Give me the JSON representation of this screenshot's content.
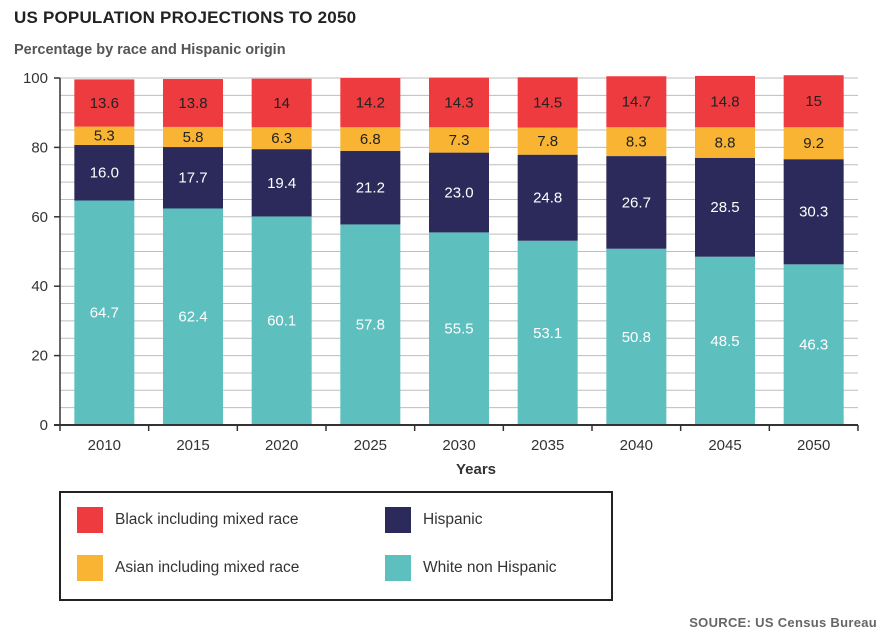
{
  "title": "US POPULATION PROJECTIONS TO 2050",
  "subtitle": "Percentage by race and Hispanic origin",
  "source": "SOURCE: US Census Bureau",
  "chart_data": {
    "type": "bar",
    "stacked": true,
    "title": "US POPULATION PROJECTIONS TO 2050",
    "subtitle": "Percentage by race and Hispanic origin",
    "xlabel": "Years",
    "ylabel": "",
    "ylim": [
      0,
      100
    ],
    "yticks": [
      "0",
      "20",
      "40",
      "60",
      "80",
      "100"
    ],
    "categories": [
      "2010",
      "2015",
      "2020",
      "2025",
      "2030",
      "2035",
      "2040",
      "2045",
      "2050"
    ],
    "grid": true,
    "legend_position": "bottom-left",
    "series": [
      {
        "name": "White non Hispanic",
        "color": "#5ebfbf",
        "label_color": "#ffffff",
        "values": [
          64.7,
          62.4,
          60.1,
          57.8,
          55.5,
          53.1,
          50.8,
          48.5,
          46.3
        ],
        "labels": [
          "64.7",
          "62.4",
          "60.1",
          "57.8",
          "55.5",
          "53.1",
          "50.8",
          "48.5",
          "46.3"
        ]
      },
      {
        "name": "Hispanic",
        "color": "#2b2a5b",
        "label_color": "#ffffff",
        "values": [
          16.0,
          17.7,
          19.4,
          21.2,
          23.0,
          24.8,
          26.7,
          28.5,
          30.3
        ],
        "labels": [
          "16.0",
          "17.7",
          "19.4",
          "21.2",
          "23.0",
          "24.8",
          "26.7",
          "28.5",
          "30.3"
        ]
      },
      {
        "name": "Asian including mixed race",
        "color": "#f8b432",
        "label_color": "#222222",
        "values": [
          5.3,
          5.8,
          6.3,
          6.8,
          7.3,
          7.8,
          8.3,
          8.8,
          9.2
        ],
        "labels": [
          "5.3",
          "5.8",
          "6.3",
          "6.8",
          "7.3",
          "7.8",
          "8.3",
          "8.8",
          "9.2"
        ]
      },
      {
        "name": "Black including mixed race",
        "color": "#ee3b3f",
        "label_color": "#222222",
        "values": [
          13.6,
          13.8,
          14,
          14.2,
          14.3,
          14.5,
          14.7,
          14.8,
          15
        ],
        "labels": [
          "13.6",
          "13.8",
          "14",
          "14.2",
          "14.3",
          "14.5",
          "14.7",
          "14.8",
          "15"
        ]
      }
    ]
  },
  "legend": [
    {
      "label": "Black including mixed race",
      "color": "#ee3b3f"
    },
    {
      "label": "Hispanic",
      "color": "#2b2a5b"
    },
    {
      "label": "Asian including mixed race",
      "color": "#f8b432"
    },
    {
      "label": "White non Hispanic",
      "color": "#5ebfbf"
    }
  ]
}
